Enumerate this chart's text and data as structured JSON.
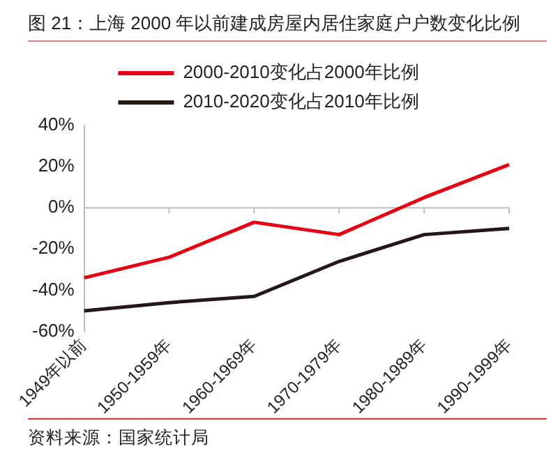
{
  "chart_data": {
    "type": "line",
    "title": "图 21：上海 2000 年以前建成房屋内居住家庭户户数变化比例",
    "categories": [
      "1949年以前",
      "1950-1959年",
      "1960-1969年",
      "1970-1979年",
      "1980-1989年",
      "1990-1999年"
    ],
    "series": [
      {
        "name": "2000-2010变化占2000年比例",
        "color": "#e60012",
        "values": [
          -34,
          -24,
          -7,
          -13,
          5,
          21
        ]
      },
      {
        "name": "2010-2020变化占2010年比例",
        "color": "#231815",
        "values": [
          -50,
          -46,
          -43,
          -26,
          -13,
          -10
        ]
      }
    ],
    "ylim": [
      -60,
      40
    ],
    "yticks": [
      {
        "value": -60,
        "label": "-60%"
      },
      {
        "value": -40,
        "label": "-40%"
      },
      {
        "value": -20,
        "label": "-20%"
      },
      {
        "value": 0,
        "label": "0%"
      },
      {
        "value": 20,
        "label": "20%"
      },
      {
        "value": 40,
        "label": "40%"
      }
    ],
    "ref_lines": [
      {
        "axis": "y",
        "value": 0,
        "color": "#bfbfbf"
      }
    ],
    "legend": "top",
    "marker": "none",
    "line_style": "solid",
    "grid": false,
    "annotations": [
      "资料来源：国家统计局"
    ]
  }
}
